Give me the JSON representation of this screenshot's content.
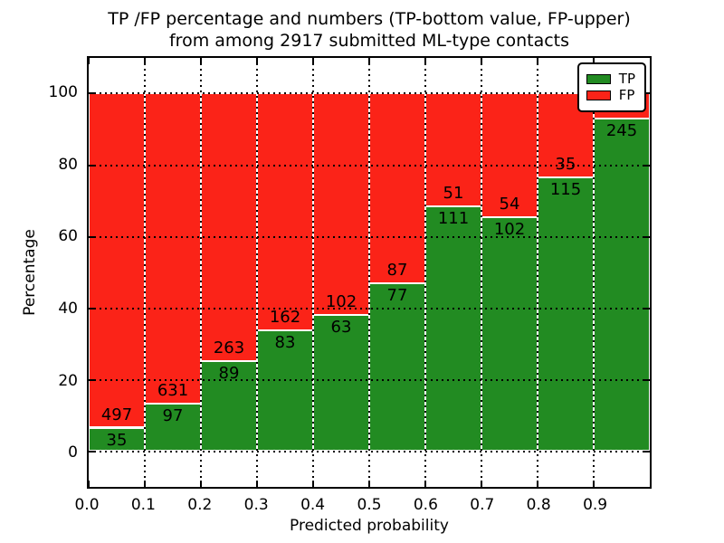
{
  "title": {
    "line1": "TP /FP percentage and numbers (TP-bottom value, FP-upper)",
    "line2": "from among 2917 submitted ML-type contacts"
  },
  "axes": {
    "xlabel": "Predicted probability",
    "ylabel": "Percentage",
    "x_ticks": [
      "0.0",
      "0.1",
      "0.2",
      "0.3",
      "0.4",
      "0.5",
      "0.6",
      "0.7",
      "0.8",
      "0.9"
    ],
    "x_tick_values": [
      0.0,
      0.1,
      0.2,
      0.3,
      0.4,
      0.5,
      0.6,
      0.7,
      0.8,
      0.9
    ],
    "y_ticks": [
      "0",
      "20",
      "40",
      "60",
      "80",
      "100"
    ],
    "y_tick_values": [
      0,
      20,
      40,
      60,
      80,
      100
    ]
  },
  "legend": {
    "items": [
      {
        "label": "TP",
        "color": "#228b22"
      },
      {
        "label": "FP",
        "color": "#fb2318"
      }
    ]
  },
  "colors": {
    "tp": "#228b22",
    "fp": "#fb2318",
    "background": "#ffffff",
    "grid": "#000000",
    "text": "#000000"
  },
  "chart_data": {
    "type": "bar",
    "stacked": true,
    "normalized_to_percent": true,
    "title": "TP /FP percentage and numbers (TP-bottom value, FP-upper) from among 2917 submitted ML-type contacts",
    "xlabel": "Predicted probability",
    "ylabel": "Percentage",
    "xlim": [
      0.0,
      1.0
    ],
    "ylim": [
      -10,
      110
    ],
    "grid": "dotted",
    "legend_position": "upper right",
    "total_contacts": 2917,
    "categories": [
      "0.0-0.1",
      "0.1-0.2",
      "0.2-0.3",
      "0.3-0.4",
      "0.4-0.5",
      "0.5-0.6",
      "0.6-0.7",
      "0.7-0.8",
      "0.8-0.9",
      "0.9-1.0"
    ],
    "series": [
      {
        "name": "TP",
        "color": "#228b22",
        "values": [
          35,
          97,
          89,
          83,
          63,
          77,
          111,
          102,
          115,
          245
        ]
      },
      {
        "name": "FP",
        "color": "#fb2318",
        "values": [
          497,
          631,
          263,
          162,
          102,
          87,
          51,
          54,
          35,
          18
        ]
      }
    ],
    "bins": [
      {
        "x_start": 0.0,
        "x_end": 0.1,
        "tp": 35,
        "fp": 497
      },
      {
        "x_start": 0.1,
        "x_end": 0.2,
        "tp": 97,
        "fp": 631
      },
      {
        "x_start": 0.2,
        "x_end": 0.3,
        "tp": 89,
        "fp": 263
      },
      {
        "x_start": 0.3,
        "x_end": 0.4,
        "tp": 83,
        "fp": 162
      },
      {
        "x_start": 0.4,
        "x_end": 0.5,
        "tp": 63,
        "fp": 102
      },
      {
        "x_start": 0.5,
        "x_end": 0.6,
        "tp": 77,
        "fp": 87
      },
      {
        "x_start": 0.6,
        "x_end": 0.7,
        "tp": 111,
        "fp": 51
      },
      {
        "x_start": 0.7,
        "x_end": 0.8,
        "tp": 102,
        "fp": 54
      },
      {
        "x_start": 0.8,
        "x_end": 0.9,
        "tp": 115,
        "fp": 35
      },
      {
        "x_start": 0.9,
        "x_end": 1.0,
        "tp": 245,
        "fp": 18
      }
    ]
  }
}
